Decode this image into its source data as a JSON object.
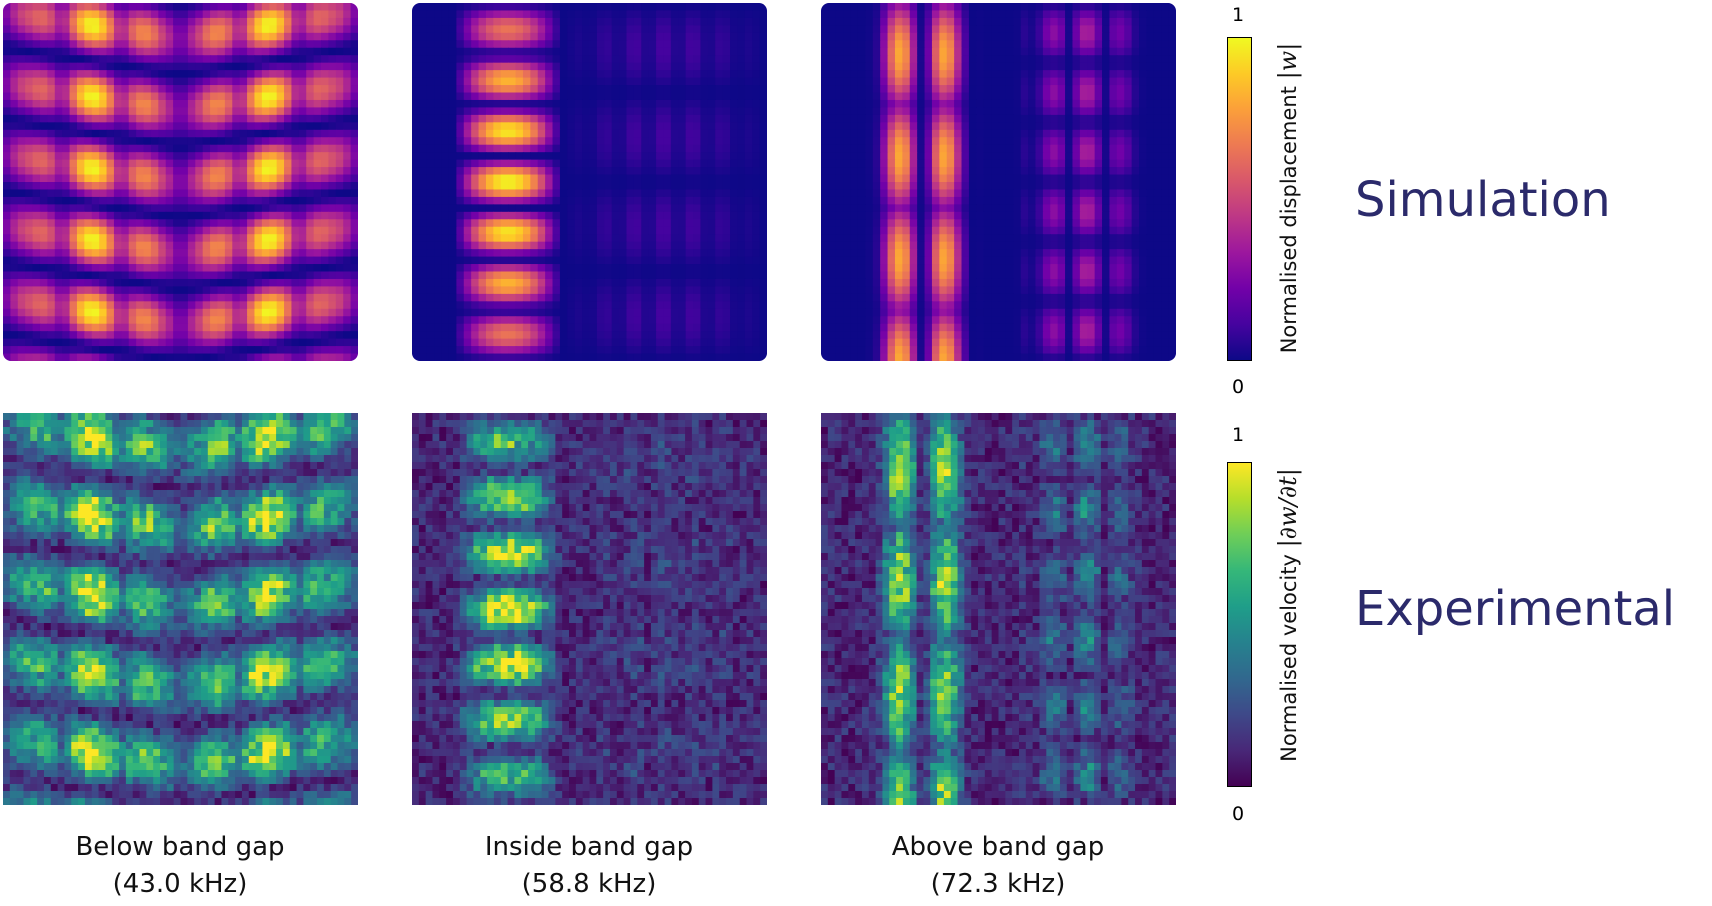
{
  "columns": [
    {
      "label": "Below band gap",
      "freq": "(43.0 kHz)"
    },
    {
      "label": "Inside band gap",
      "freq": "(58.8 kHz)"
    },
    {
      "label": "Above band gap",
      "freq": "(72.3 kHz)"
    }
  ],
  "rows": {
    "simulation": "Simulation",
    "experimental": "Experimental"
  },
  "colorbars": {
    "top": {
      "label": "Normalised displacement ",
      "symbol": "|w|",
      "max": "1",
      "min": "0",
      "colormap": "plasma"
    },
    "bottom": {
      "label": "Normalised velocity ",
      "symbol": "|∂w/∂t|",
      "max": "1",
      "min": "0",
      "colormap": "viridis"
    }
  },
  "colors": {
    "row_label": "#2b2a6b"
  }
}
